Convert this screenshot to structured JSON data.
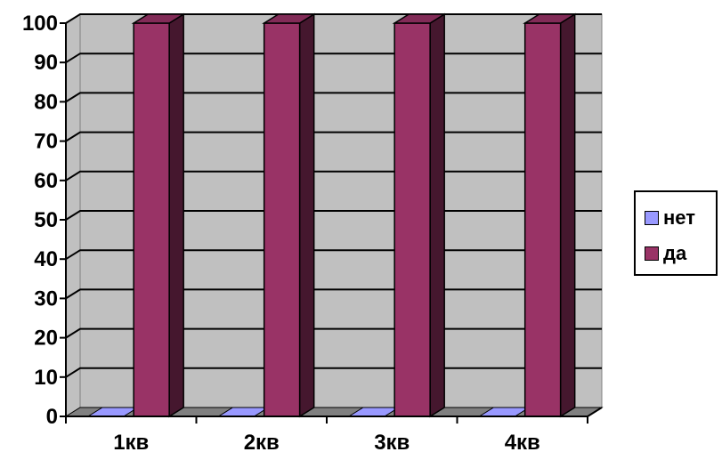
{
  "chart_data": {
    "type": "bar",
    "categories": [
      "1кв",
      "2кв",
      "3кв",
      "4кв"
    ],
    "series": [
      {
        "name": "нет",
        "values": [
          0,
          0,
          0,
          0
        ],
        "color": "#9999ff"
      },
      {
        "name": "да",
        "values": [
          100,
          100,
          100,
          100
        ],
        "color": "#993366"
      }
    ],
    "ylim": [
      0,
      100
    ],
    "yticks": [
      "0",
      "10",
      "20",
      "30",
      "40",
      "50",
      "60",
      "70",
      "80",
      "90",
      "100"
    ],
    "grid": true,
    "legend_position": "right",
    "plot_background": "#c0c0c0"
  }
}
